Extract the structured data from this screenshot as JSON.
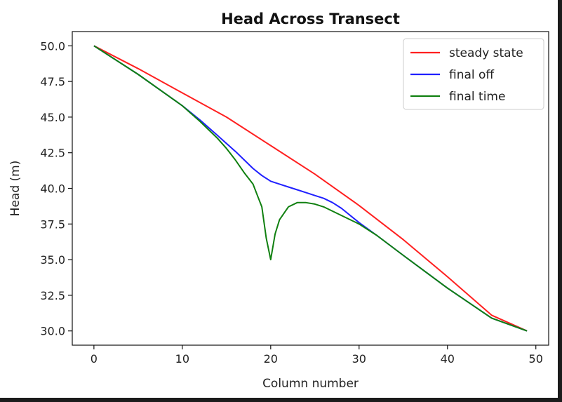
{
  "chart_data": {
    "type": "line",
    "title": "Head Across Transect",
    "xlabel": "Column number",
    "ylabel": "Head (m)",
    "xlim": [
      -2.45,
      51.45
    ],
    "ylim": [
      29.0,
      51.0
    ],
    "xticks": [
      0,
      10,
      20,
      30,
      40,
      50
    ],
    "yticks": [
      30.0,
      32.5,
      35.0,
      37.5,
      40.0,
      42.5,
      45.0,
      47.5,
      50.0
    ],
    "xtick_labels": [
      "0",
      "10",
      "20",
      "30",
      "40",
      "50"
    ],
    "ytick_labels": [
      "30.0",
      "32.5",
      "35.0",
      "37.5",
      "40.0",
      "42.5",
      "45.0",
      "47.5",
      "50.0"
    ],
    "grid": false,
    "legend_position": "top-right",
    "series": [
      {
        "name": "steady state",
        "color": "#ff2020",
        "x": [
          0,
          5,
          10,
          15,
          20,
          25,
          30,
          35,
          40,
          45,
          49
        ],
        "y": [
          50.0,
          48.4,
          46.7,
          45.0,
          43.0,
          41.0,
          38.8,
          36.4,
          33.8,
          31.1,
          30.0
        ]
      },
      {
        "name": "final off",
        "color": "#2020ff",
        "x": [
          0,
          5,
          10,
          12,
          14,
          16,
          17,
          18,
          19,
          20,
          21,
          22,
          23,
          24,
          25,
          26,
          27,
          28,
          30,
          32,
          35,
          40,
          45,
          49
        ],
        "y": [
          50.0,
          48.0,
          45.8,
          44.8,
          43.7,
          42.6,
          42.0,
          41.4,
          40.9,
          40.5,
          40.3,
          40.1,
          39.9,
          39.7,
          39.5,
          39.3,
          39.0,
          38.6,
          37.6,
          36.7,
          35.3,
          33.0,
          30.9,
          30.0
        ]
      },
      {
        "name": "final time",
        "color": "#108010",
        "x": [
          0,
          5,
          10,
          12,
          14,
          15,
          16,
          17,
          18,
          18.5,
          19,
          19.5,
          20,
          20.5,
          21,
          22,
          23,
          24,
          25,
          26,
          27,
          28,
          30,
          32,
          35,
          40,
          45,
          49
        ],
        "y": [
          50.0,
          48.0,
          45.8,
          44.7,
          43.5,
          42.8,
          42.0,
          41.1,
          40.3,
          39.5,
          38.7,
          36.5,
          35.0,
          36.8,
          37.8,
          38.7,
          39.0,
          39.0,
          38.9,
          38.7,
          38.4,
          38.1,
          37.5,
          36.7,
          35.3,
          33.0,
          30.9,
          30.0
        ]
      }
    ]
  }
}
